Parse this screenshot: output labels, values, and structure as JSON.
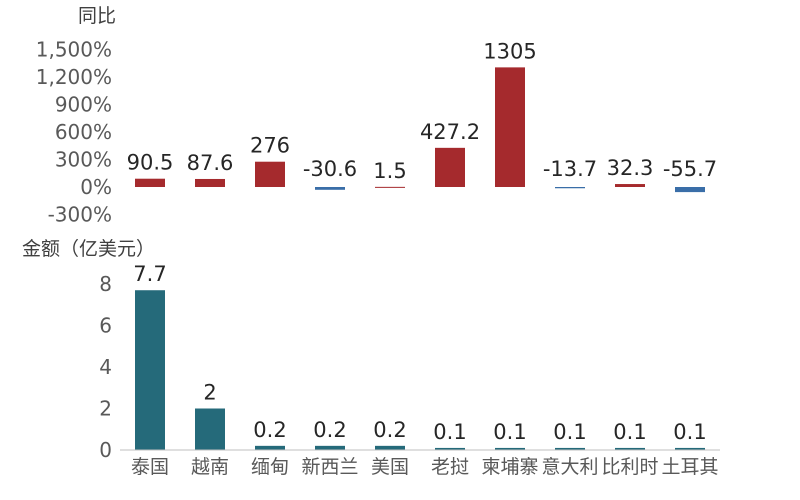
{
  "chart_data": [
    {
      "type": "bar",
      "title": "同比",
      "categories": [
        "泰国",
        "越南",
        "缅甸",
        "新西兰",
        "美国",
        "老挝",
        "柬埔寨",
        "意大利",
        "比利时",
        "土耳其"
      ],
      "values": [
        90.5,
        87.6,
        276,
        -30.6,
        1.5,
        427.2,
        1305,
        -13.7,
        32.3,
        -55.7
      ],
      "data_labels": [
        "90.5",
        "87.6",
        "276",
        "-30.6",
        "1.5",
        "427.2",
        "1305",
        "-13.7",
        "32.3",
        "-55.7"
      ],
      "ylim": [
        -300,
        1500
      ],
      "yticks": [
        -300,
        0,
        300,
        600,
        900,
        1200,
        1500
      ],
      "ytick_labels": [
        "-300%",
        "0%",
        "300%",
        "600%",
        "900%",
        "1,200%",
        "1,500%"
      ],
      "positive_color": "#a52a2d",
      "negative_color": "#3a6ea8",
      "grid": false,
      "legend": "none"
    },
    {
      "type": "bar",
      "title": "金额（亿美元）",
      "categories": [
        "泰国",
        "越南",
        "缅甸",
        "新西兰",
        "美国",
        "老挝",
        "柬埔寨",
        "意大利",
        "比利时",
        "土耳其"
      ],
      "values": [
        7.7,
        2,
        0.2,
        0.2,
        0.2,
        0.1,
        0.1,
        0.1,
        0.1,
        0.1
      ],
      "data_labels": [
        "7.7",
        "2",
        "0.2",
        "0.2",
        "0.2",
        "0.1",
        "0.1",
        "0.1",
        "0.1",
        "0.1"
      ],
      "ylim": [
        0,
        8
      ],
      "yticks": [
        0,
        2,
        4,
        6,
        8
      ],
      "ytick_labels": [
        "0",
        "2",
        "4",
        "6",
        "8"
      ],
      "bar_color": "#256a7a",
      "grid": false,
      "legend": "none"
    }
  ]
}
